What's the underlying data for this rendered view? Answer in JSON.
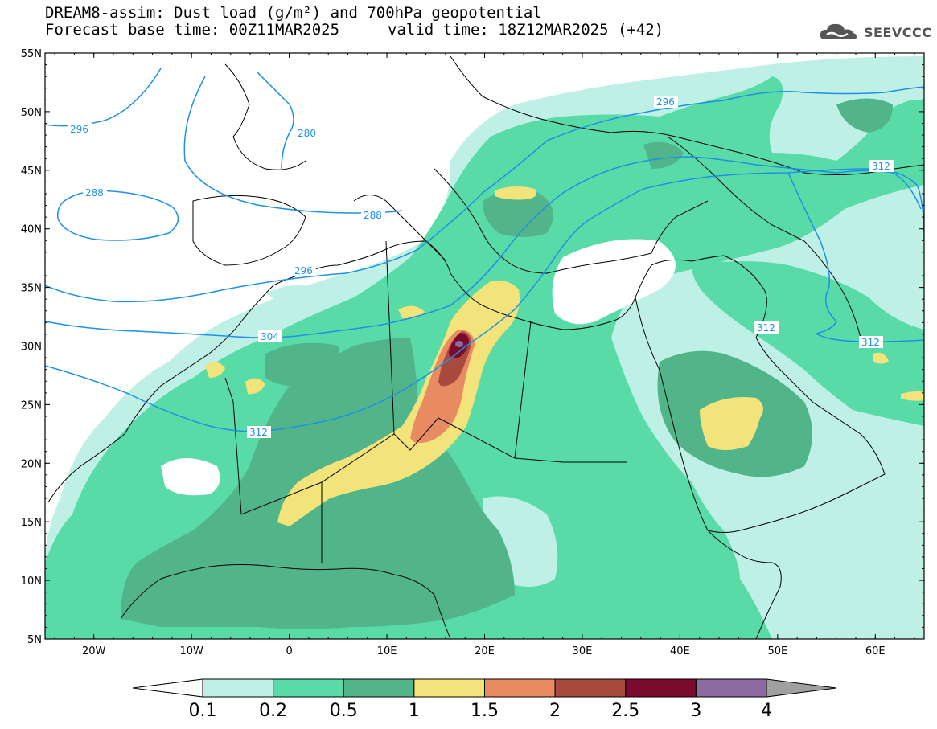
{
  "header": {
    "line1": "DREAM8-assim: Dust load (g/m²) and 700hPa geopotential",
    "line2_base": "Forecast base time: 00Z11MAR2025",
    "line2_valid": "valid time: 18Z12MAR2025 (+42)"
  },
  "logo": {
    "text": "SEEVCCC",
    "icon": "cloud-icon"
  },
  "map": {
    "lon_range": [
      -25,
      65
    ],
    "lat_range": [
      5,
      55
    ],
    "lat_labels": [
      "55N",
      "50N",
      "45N",
      "40N",
      "35N",
      "30N",
      "25N",
      "20N",
      "15N",
      "10N",
      "5N"
    ],
    "lon_labels": [
      "20W",
      "10W",
      "0",
      "10E",
      "20E",
      "30E",
      "40E",
      "50E",
      "60E"
    ],
    "geopotential_contour_labels": [
      "296",
      "280",
      "288",
      "288",
      "296",
      "304",
      "312",
      "296",
      "312",
      "312"
    ]
  },
  "colorbar": {
    "tick_labels": [
      "0.1",
      "0.2",
      "0.5",
      "1",
      "1.5",
      "2",
      "2.5",
      "3",
      "4"
    ],
    "colors": [
      "#ffffff",
      "#bff0e6",
      "#59dba8",
      "#52b58a",
      "#f2e37a",
      "#e88a62",
      "#a84a3e",
      "#7a0a2e",
      "#8d6aa0",
      "#a0a0a0"
    ]
  }
}
